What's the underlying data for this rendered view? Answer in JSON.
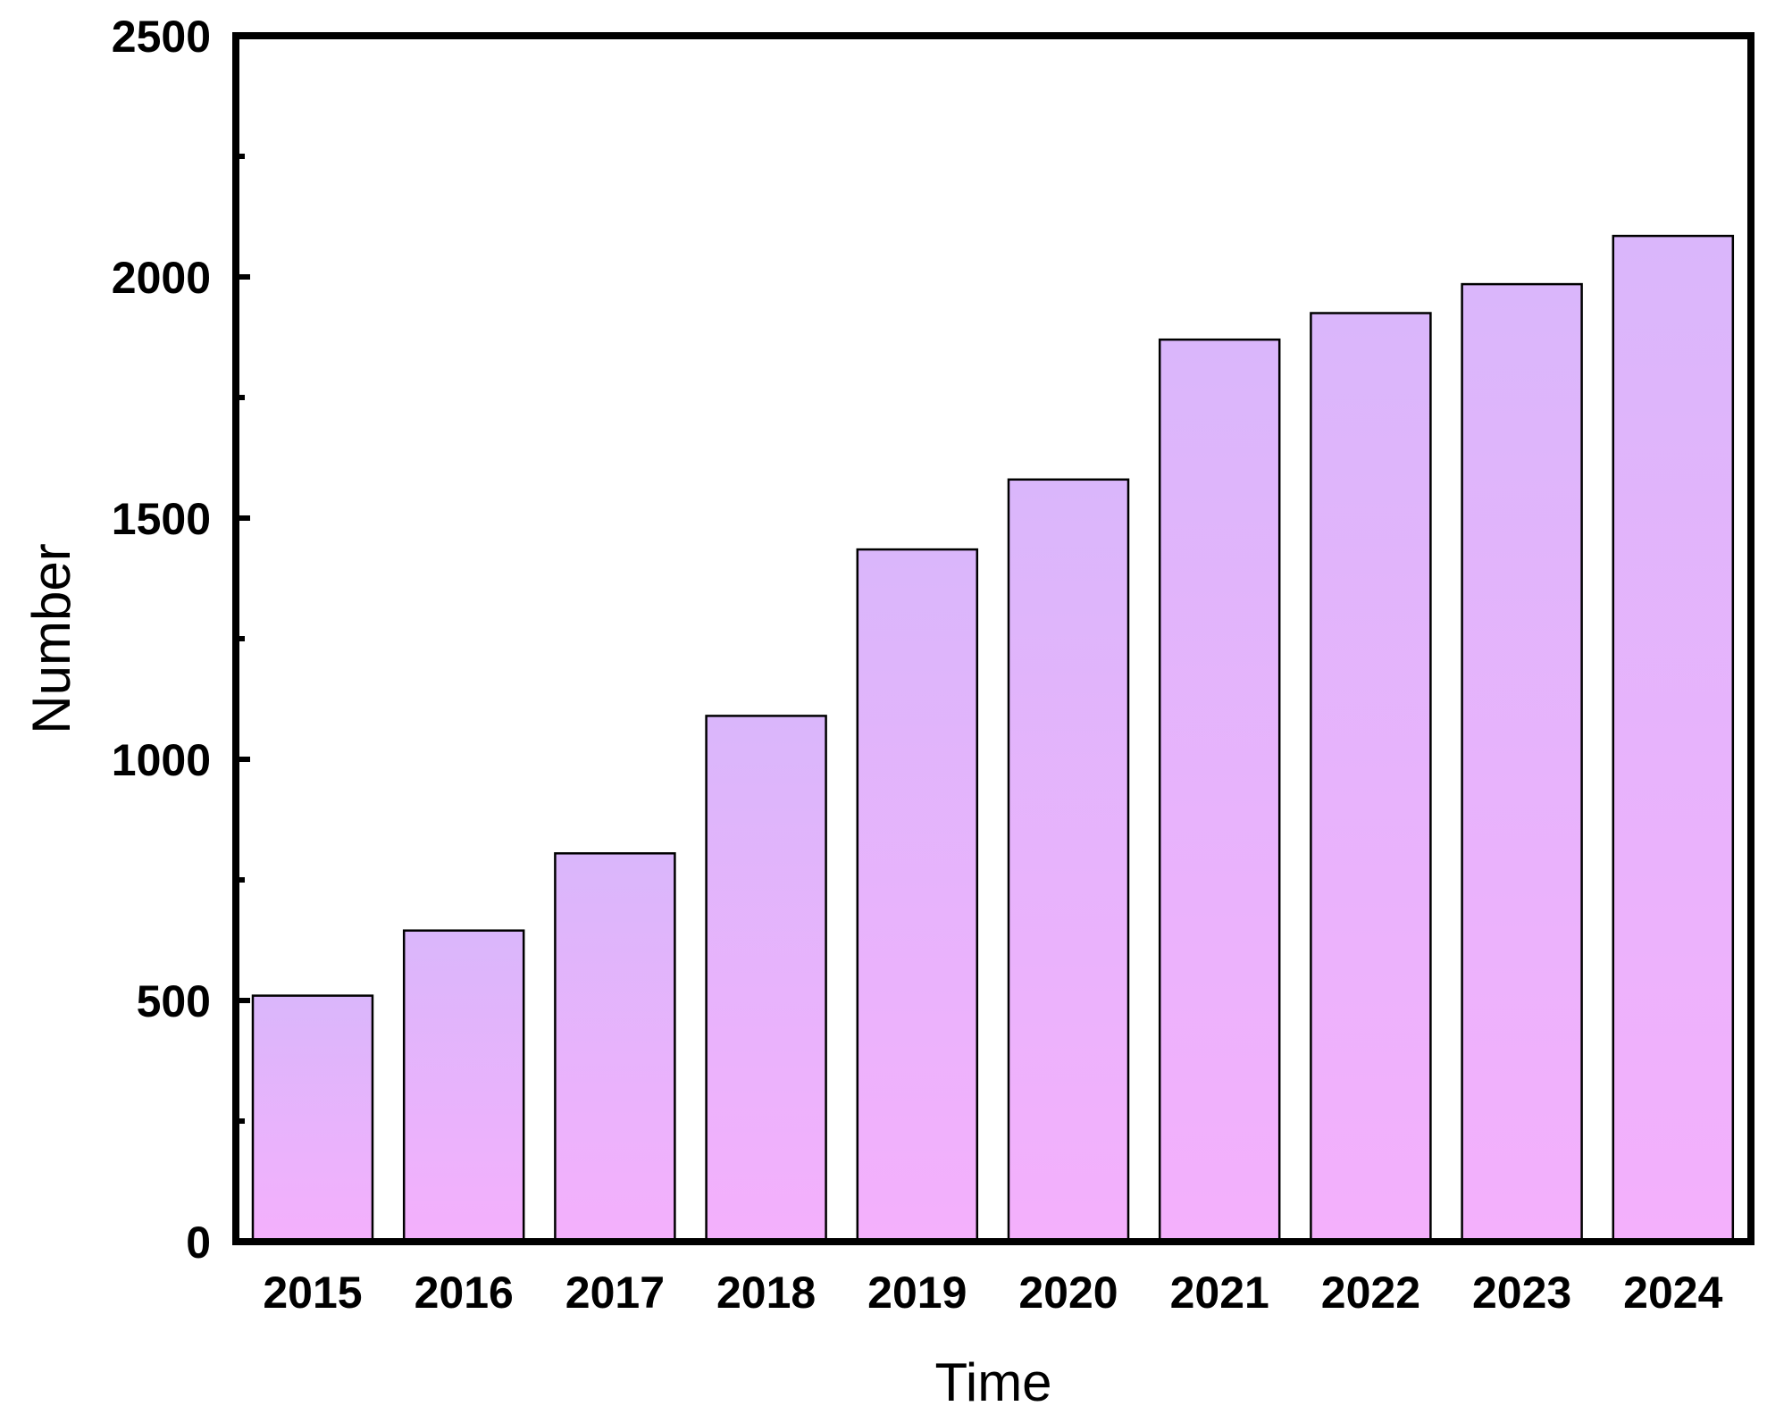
{
  "chart_data": {
    "type": "bar",
    "title": "",
    "xlabel": "Time",
    "ylabel": "Number",
    "categories": [
      "2015",
      "2016",
      "2017",
      "2018",
      "2019",
      "2020",
      "2021",
      "2022",
      "2023",
      "2024"
    ],
    "values": [
      510,
      645,
      805,
      1090,
      1435,
      1580,
      1870,
      1925,
      1985,
      2085
    ],
    "ylim": [
      0,
      2500
    ],
    "yticks": [
      "0",
      "500",
      "1000",
      "1500",
      "2000",
      "2500"
    ],
    "grid": false,
    "legend": "none",
    "colors": {
      "bar_top": "#dab6fb",
      "bar_bottom": "#f4b0fc",
      "bar_edge": "#000000",
      "axis": "#000000"
    }
  }
}
